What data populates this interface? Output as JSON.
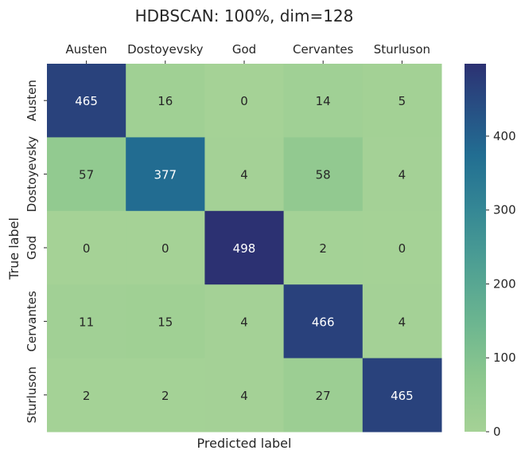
{
  "chart_data": {
    "type": "heatmap",
    "title": "HDBSCAN: 100%, dim=128",
    "xlabel": "Predicted label",
    "ylabel": "True label",
    "x_categories": [
      "Austen",
      "Dostoyevsky",
      "God",
      "Cervantes",
      "Sturluson"
    ],
    "y_categories": [
      "Austen",
      "Dostoyevsky",
      "God",
      "Cervantes",
      "Sturluson"
    ],
    "values": [
      [
        465,
        16,
        0,
        14,
        5
      ],
      [
        57,
        377,
        4,
        58,
        4
      ],
      [
        0,
        0,
        498,
        2,
        0
      ],
      [
        11,
        15,
        4,
        466,
        4
      ],
      [
        2,
        2,
        4,
        27,
        465
      ]
    ],
    "x_tick_position": "top",
    "colorbar": {
      "range": [
        0,
        498
      ],
      "ticks": [
        0,
        100,
        200,
        300,
        400
      ],
      "colormap": "crest",
      "color_low": "#a5d296",
      "color_high": "#2c3172"
    },
    "annotation_color_dark_bg": "#ffffff",
    "annotation_color_light_bg": "#262626"
  }
}
